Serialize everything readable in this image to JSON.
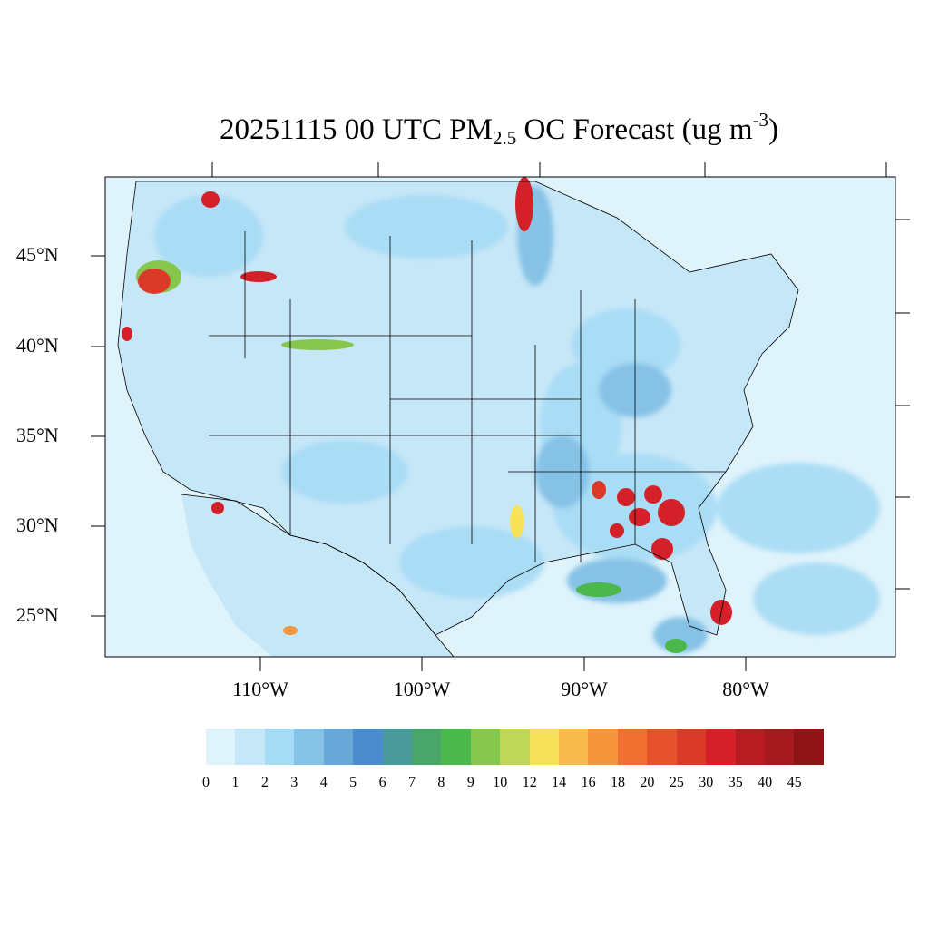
{
  "map": {
    "title": {
      "main": "20251115 00 UTC PM",
      "sub": "2.5",
      "middle": " OC Forecast (ug m",
      "sup": "-3",
      "end": ")"
    },
    "lat_labels": [
      "45°N",
      "40°N",
      "35°N",
      "30°N",
      "25°N"
    ],
    "lon_labels": [
      "110°W",
      "100°W",
      "90°W",
      "80°W"
    ],
    "colorbar": {
      "labels": [
        "0",
        "1",
        "2",
        "3",
        "4",
        "5",
        "6",
        "7",
        "8",
        "9",
        "10",
        "12",
        "14",
        "16",
        "18",
        "20",
        "25",
        "30",
        "35",
        "40",
        "45"
      ],
      "colors": [
        "#dff3fb",
        "#c6e7f7",
        "#a6dbf5",
        "#86c2e6",
        "#68a8d8",
        "#4b8ccc",
        "#4a9a9a",
        "#4aa56a",
        "#4cb74a",
        "#86c64c",
        "#c0d656",
        "#f6e35a",
        "#f7bb4b",
        "#f5963c",
        "#f07032",
        "#e6522b",
        "#dc3a28",
        "#d42028",
        "#b81c22",
        "#a6191e",
        "#8e1418"
      ]
    },
    "colors": {
      "ocean": "#dff3fb",
      "land_base": "#c6e7f7",
      "boundary": "#000000"
    }
  }
}
